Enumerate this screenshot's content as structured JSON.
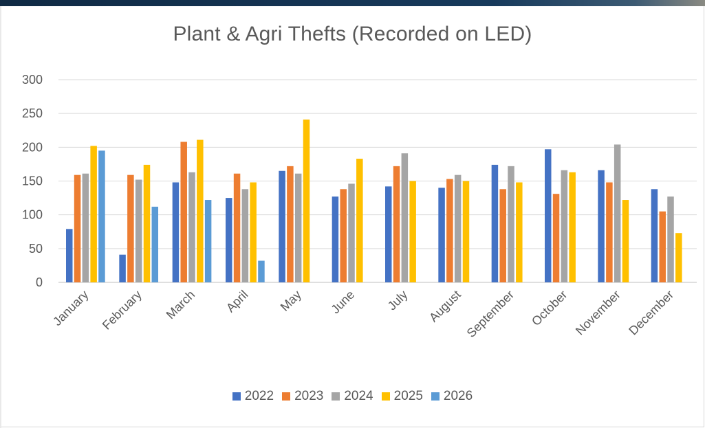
{
  "chart_data": {
    "type": "bar",
    "title": "Plant & Agri Thefts (Recorded on LED)",
    "categories": [
      "January",
      "February",
      "March",
      "April",
      "May",
      "June",
      "July",
      "August",
      "September",
      "October",
      "November",
      "December"
    ],
    "series": [
      {
        "name": "2022",
        "color": "#4472c4",
        "values": [
          79,
          41,
          148,
          125,
          165,
          127,
          142,
          140,
          174,
          197,
          166,
          138
        ]
      },
      {
        "name": "2023",
        "color": "#ed7d31",
        "values": [
          159,
          159,
          208,
          161,
          172,
          138,
          172,
          153,
          138,
          131,
          148,
          105
        ]
      },
      {
        "name": "2024",
        "color": "#a5a5a5",
        "values": [
          161,
          152,
          163,
          138,
          161,
          146,
          191,
          159,
          172,
          166,
          204,
          127
        ]
      },
      {
        "name": "2025",
        "color": "#ffc000",
        "values": [
          202,
          174,
          211,
          148,
          241,
          183,
          150,
          150,
          148,
          163,
          122,
          73
        ]
      },
      {
        "name": "2026",
        "color": "#5b9bd5",
        "values": [
          195,
          112,
          122,
          32,
          null,
          null,
          null,
          null,
          null,
          null,
          null,
          null
        ]
      }
    ],
    "yticks": [
      0,
      50,
      100,
      150,
      200,
      250,
      300
    ],
    "ylim": [
      0,
      300
    ],
    "grid": true,
    "legend_position": "bottom",
    "xlabel": "",
    "ylabel": ""
  }
}
